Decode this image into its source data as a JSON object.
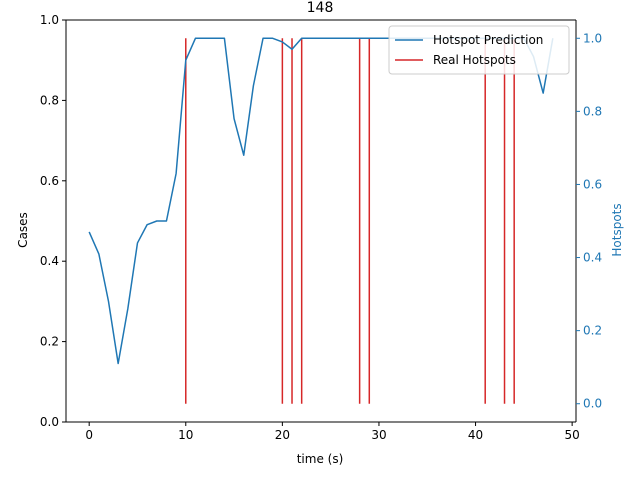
{
  "chart_data": {
    "type": "line",
    "title": "148",
    "xlabel": "time (s)",
    "ylabel_left": "Cases",
    "ylabel_right": "Hotspots",
    "xlim": [
      -2.4,
      50.4
    ],
    "ylim_left": [
      0,
      1.0
    ],
    "ylim_right": [
      -0.05,
      1.05
    ],
    "x_ticks": [
      0,
      10,
      20,
      30,
      40,
      50
    ],
    "y_left_ticks": [
      0.0,
      0.2,
      0.4,
      0.6,
      0.8,
      1.0
    ],
    "y_right_ticks": [
      0.0,
      0.2,
      0.4,
      0.6,
      0.8,
      1.0
    ],
    "grid": false,
    "legend_position": "upper right",
    "series": [
      {
        "name": "Hotspot Prediction",
        "axis": "right",
        "color": "#1f77b4",
        "x": [
          0,
          1,
          2,
          3,
          4,
          5,
          6,
          7,
          8,
          9,
          10,
          11,
          12,
          13,
          14,
          15,
          16,
          17,
          18,
          19,
          20,
          21,
          22,
          23,
          24,
          25,
          26,
          27,
          28,
          29,
          30,
          31,
          32,
          33,
          34,
          35,
          36,
          37,
          38,
          39,
          40,
          41,
          42,
          43,
          44,
          45,
          46,
          47,
          48
        ],
        "y": [
          0.47,
          0.41,
          0.28,
          0.11,
          0.26,
          0.44,
          0.49,
          0.5,
          0.5,
          0.63,
          0.94,
          1.0,
          1.0,
          1.0,
          1.0,
          0.78,
          0.68,
          0.87,
          1.0,
          1.0,
          0.99,
          0.97,
          1.0,
          1.0,
          1.0,
          1.0,
          1.0,
          1.0,
          1.0,
          1.0,
          1.0,
          1.0,
          1.0,
          1.0,
          1.0,
          1.0,
          1.0,
          1.0,
          1.0,
          1.0,
          1.0,
          1.0,
          1.0,
          1.0,
          1.0,
          1.0,
          0.95,
          0.85,
          1.0
        ]
      },
      {
        "name": "Real Hotspots",
        "axis": "right",
        "color": "#d62728",
        "type": "vlines",
        "x": [
          10,
          20,
          21,
          22,
          28,
          29,
          41,
          43,
          44
        ],
        "ymin": 0.0,
        "ymax": 1.0
      }
    ],
    "tick_color_right": "#1f77b4"
  }
}
